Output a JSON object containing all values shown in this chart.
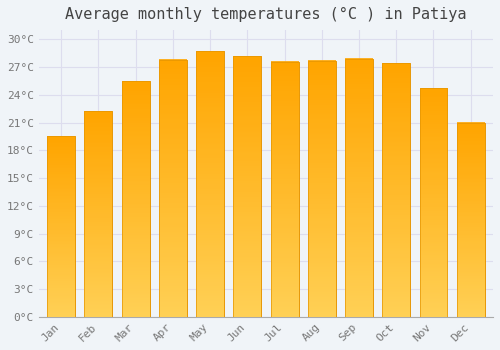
{
  "title": "Average monthly temperatures (°C ) in Patiya",
  "months": [
    "Jan",
    "Feb",
    "Mar",
    "Apr",
    "May",
    "Jun",
    "Jul",
    "Aug",
    "Sep",
    "Oct",
    "Nov",
    "Dec"
  ],
  "temperatures": [
    19.5,
    22.2,
    25.5,
    27.8,
    28.7,
    28.2,
    27.6,
    27.7,
    27.9,
    27.4,
    24.7,
    21.0
  ],
  "bar_color_top": "#FFD966",
  "bar_color_bottom": "#FFA500",
  "bar_edge_color": "#E69500",
  "background_color": "#F0F4F8",
  "plot_bg_color": "#F0F4F8",
  "grid_color": "#DDDDEE",
  "ylim": [
    0,
    31
  ],
  "yticks": [
    0,
    3,
    6,
    9,
    12,
    15,
    18,
    21,
    24,
    27,
    30
  ],
  "title_fontsize": 11,
  "tick_fontsize": 8,
  "title_color": "#444444",
  "tick_color": "#777777",
  "bar_width": 0.75
}
